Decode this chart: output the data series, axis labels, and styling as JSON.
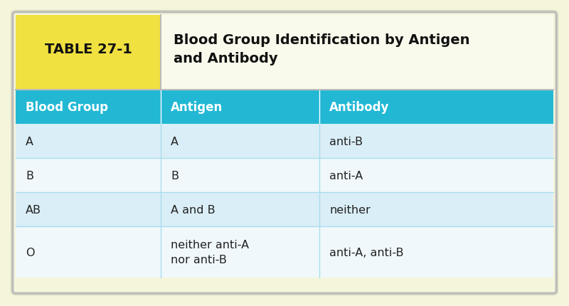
{
  "table_label": "TABLE 27-1",
  "title_line1": "Blood Group Identification by Antigen",
  "title_line2": "and Antibody",
  "headers": [
    "Blood Group",
    "Antigen",
    "Antibody"
  ],
  "rows": [
    [
      "A",
      "A",
      "anti-B"
    ],
    [
      "B",
      "B",
      "anti-A"
    ],
    [
      "AB",
      "A and B",
      "neither"
    ],
    [
      "O",
      "neither anti-A\nnor anti-B",
      "anti-A, anti-B"
    ]
  ],
  "bg_outer": "#f5f5dc",
  "bg_outer_border": "#d8d8c0",
  "bg_header_label": "#f0e040",
  "bg_header_title": "#fafaec",
  "bg_col_header": "#22b8d4",
  "bg_row_odd": "#daeef7",
  "bg_row_even": "#f0f8fb",
  "col_header_text_color": "#ffffff",
  "row_text_color": "#222222",
  "header_label_color": "#111111",
  "header_title_color": "#111111",
  "border_color": "#bbbbbb",
  "divider_color": "#aaddee"
}
